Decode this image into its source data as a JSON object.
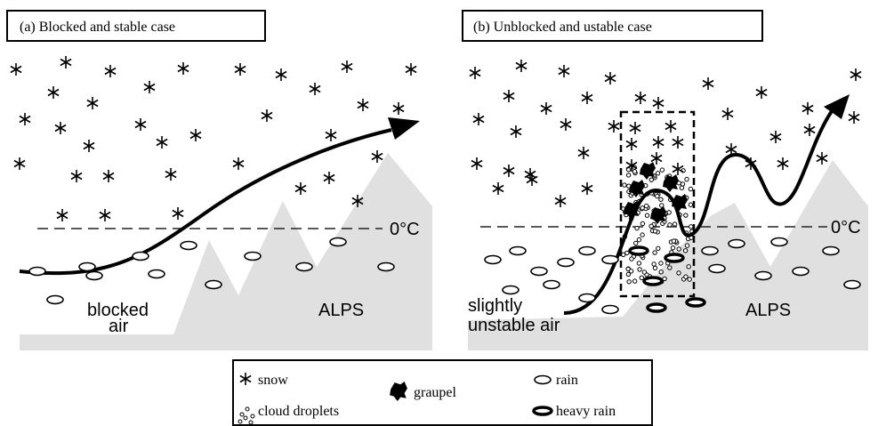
{
  "panels": [
    {
      "title": "(a) Blocked and stable case",
      "freezing_level": "0°C",
      "air_label": [
        "blocked",
        "air"
      ],
      "mountain_label": "ALPS"
    },
    {
      "title": "(b) Unblocked and ustable case",
      "freezing_level": "0°C",
      "air_label": [
        "slightly",
        "unstable air"
      ],
      "mountain_label": "ALPS"
    }
  ],
  "legend": {
    "snow": "snow",
    "cloud_droplets": "cloud droplets",
    "graupel": "graupel",
    "rain": "rain",
    "heavy_rain": "heavy rain"
  }
}
